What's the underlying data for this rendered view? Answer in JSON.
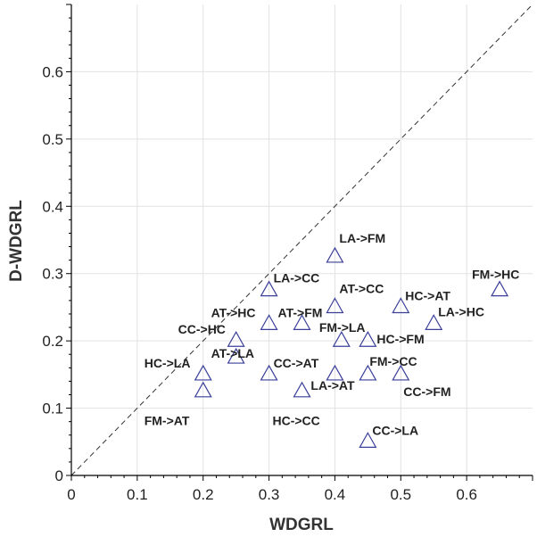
{
  "chart_data": {
    "type": "scatter",
    "xlabel": "WDGRL",
    "ylabel": "D-WDGRL",
    "xlim": [
      0,
      0.7
    ],
    "ylim": [
      0,
      0.7
    ],
    "x_ticks": [
      "0",
      "0.1",
      "0.2",
      "0.3",
      "0.4",
      "0.5",
      "0.6"
    ],
    "y_ticks": [
      "0",
      "0.1",
      "0.2",
      "0.3",
      "0.4",
      "0.5",
      "0.6"
    ],
    "grid": true,
    "reference_line": "y = x",
    "marker": "triangle",
    "marker_color": "#3a3f9a",
    "points": [
      {
        "label": "LA->FM",
        "x": 0.4,
        "y": 0.325
      },
      {
        "label": "LA->CC",
        "x": 0.3,
        "y": 0.275
      },
      {
        "label": "FM->HC",
        "x": 0.65,
        "y": 0.275
      },
      {
        "label": "AT->CC",
        "x": 0.4,
        "y": 0.25
      },
      {
        "label": "HC->AT",
        "x": 0.5,
        "y": 0.25
      },
      {
        "label": "AT->HC",
        "x": 0.3,
        "y": 0.225
      },
      {
        "label": "AT->FM",
        "x": 0.35,
        "y": 0.225
      },
      {
        "label": "LA->HC",
        "x": 0.55,
        "y": 0.225
      },
      {
        "label": "CC->HC",
        "x": 0.25,
        "y": 0.2
      },
      {
        "label": "FM->LA",
        "x": 0.41,
        "y": 0.2
      },
      {
        "label": "HC->FM",
        "x": 0.45,
        "y": 0.2
      },
      {
        "label": "AT->LA",
        "x": 0.25,
        "y": 0.175
      },
      {
        "label": "HC->LA",
        "x": 0.2,
        "y": 0.15
      },
      {
        "label": "CC->AT",
        "x": 0.3,
        "y": 0.15
      },
      {
        "label": "LA->AT",
        "x": 0.4,
        "y": 0.15
      },
      {
        "label": "FM->CC",
        "x": 0.45,
        "y": 0.15
      },
      {
        "label": "CC->FM",
        "x": 0.5,
        "y": 0.15
      },
      {
        "label": "FM->AT",
        "x": 0.2,
        "y": 0.125
      },
      {
        "label": "HC->CC",
        "x": 0.35,
        "y": 0.125
      },
      {
        "label": "CC->LA",
        "x": 0.45,
        "y": 0.05
      }
    ]
  }
}
